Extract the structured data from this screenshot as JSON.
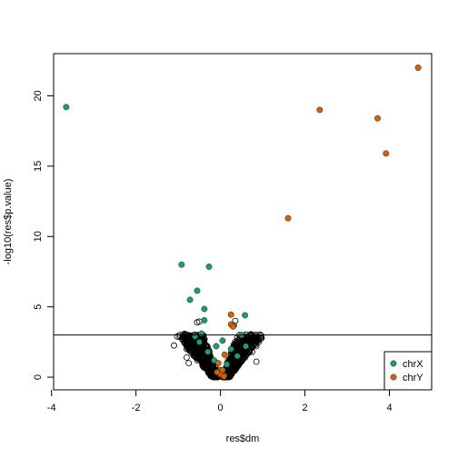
{
  "chart_data": {
    "type": "scatter",
    "title": "",
    "xlabel": "res$dm",
    "ylabel": "-log10(res$p.value)",
    "xlim": [
      -3.95,
      5.0
    ],
    "ylim": [
      -0.9,
      23.0
    ],
    "xticks": [
      -4,
      -2,
      0,
      2,
      4
    ],
    "yticks": [
      0,
      5,
      10,
      15,
      20
    ],
    "hline": 3,
    "grid": false,
    "legend": {
      "position": "bottom-right",
      "entries": [
        {
          "label": "chrX",
          "color": "#1b9e77"
        },
        {
          "label": "chrY",
          "color": "#d95f02"
        }
      ]
    },
    "series": [
      {
        "name": "chrX",
        "color": "#1b9e77",
        "points": [
          [
            -3.65,
            19.2
          ],
          [
            -0.92,
            8.0
          ],
          [
            -0.27,
            7.85
          ],
          [
            -0.55,
            6.15
          ],
          [
            -0.72,
            5.5
          ],
          [
            -0.38,
            4.85
          ],
          [
            0.58,
            4.4
          ],
          [
            -0.38,
            4.05
          ],
          [
            0.32,
            3.7
          ],
          [
            -0.45,
            3.1
          ],
          [
            0.5,
            3.0
          ],
          [
            -0.6,
            2.9
          ],
          [
            0.05,
            2.6
          ],
          [
            -0.1,
            2.2
          ],
          [
            0.25,
            2.0
          ],
          [
            -0.3,
            1.8
          ],
          [
            0.4,
            1.5
          ],
          [
            -0.15,
            1.2
          ],
          [
            0.15,
            0.9
          ],
          [
            0.0,
            0.5
          ],
          [
            -0.05,
            0.3
          ],
          [
            0.1,
            0.1
          ],
          [
            0.6,
            2.2
          ],
          [
            -0.5,
            2.5
          ]
        ]
      },
      {
        "name": "chrY",
        "color": "#d95f02",
        "points": [
          [
            4.68,
            22.0
          ],
          [
            2.35,
            19.0
          ],
          [
            3.72,
            18.4
          ],
          [
            3.92,
            15.9
          ],
          [
            1.6,
            11.3
          ],
          [
            0.25,
            4.45
          ],
          [
            0.25,
            3.75
          ],
          [
            0.3,
            3.6
          ],
          [
            0.1,
            1.6
          ],
          [
            -0.05,
            1.0
          ],
          [
            0.05,
            0.5
          ],
          [
            0.0,
            0.2
          ],
          [
            0.08,
            0.05
          ],
          [
            -0.08,
            0.35
          ]
        ]
      }
    ],
    "background_points_note_color": "#000000"
  }
}
